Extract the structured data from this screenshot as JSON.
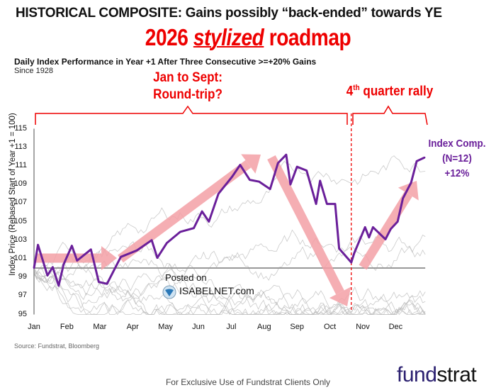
{
  "header": {
    "title": "HISTORICAL COMPOSITE: Gains possibly “back-ended” towards YE",
    "subtitle_pre": "2026 ",
    "subtitle_em": "stylized",
    "subtitle_post": " roadmap"
  },
  "annotations": {
    "left_bracket_line1": "Jan to Sept:",
    "left_bracket_line2": "Round-trip?",
    "right_bracket_pre": "4",
    "right_bracket_sup": "th",
    "right_bracket_post": " quarter rally",
    "index_line1": "Index Comp.",
    "index_line2": "(N=12)",
    "index_line3": "+12%",
    "posted_on": "Posted on",
    "watermark": "ISABELNET.com"
  },
  "colors": {
    "accent_red": "#ee0000",
    "series_purple": "#6a1f9a",
    "arrow_pink": "#f4a0a6",
    "history_gray": "#bdbdbd",
    "logo_navy": "#2b2070"
  },
  "chart_data": {
    "type": "line",
    "title": "Daily Index Performance in Year +1 After Three Consecutive >=+20% Gains",
    "subtitle": "Since 1928",
    "ylabel": "Index Price (Rebased Start of Year +1 = 100)",
    "xlabel": "",
    "x_ticks": [
      "Jan",
      "Feb",
      "Mar",
      "Apr",
      "May",
      "Jun",
      "Jul",
      "Aug",
      "Sep",
      "Oct",
      "Nov",
      "Dec"
    ],
    "y_ticks": [
      95,
      97,
      99,
      101,
      103,
      105,
      107,
      109,
      111,
      113,
      115
    ],
    "ylim": [
      95,
      115
    ],
    "x_unit": "months from start of Jan",
    "baseline": 100,
    "grid": false,
    "quarter_marker_x": 9.65,
    "series": [
      {
        "name": "Index Comp. (N=12)",
        "x": [
          0,
          0.12,
          0.41,
          0.57,
          0.75,
          0.9,
          1.15,
          1.31,
          1.73,
          1.97,
          2.22,
          2.64,
          3.13,
          3.58,
          3.75,
          4.04,
          4.45,
          4.86,
          5.11,
          5.32,
          5.61,
          6.02,
          6.27,
          6.56,
          6.85,
          7.18,
          7.42,
          7.67,
          7.8,
          8.0,
          8.29,
          8.58,
          8.7,
          8.91,
          9.16,
          9.28,
          9.65,
          9.74,
          10.07,
          10.19,
          10.31,
          10.69,
          10.85,
          11.06,
          11.22,
          11.47,
          11.64,
          11.88
        ],
        "y": [
          100,
          102.5,
          99.2,
          100.1,
          98.1,
          100.4,
          102.4,
          100.8,
          102,
          98.5,
          98.3,
          101.2,
          101.9,
          103,
          101.1,
          102.7,
          103.9,
          104.3,
          106.1,
          105,
          108,
          109.8,
          111.1,
          109.5,
          109.3,
          108.5,
          111.3,
          112.2,
          109,
          110.9,
          110.5,
          106.9,
          109.4,
          106.9,
          106.9,
          102.1,
          100.6,
          101.6,
          104.4,
          103.3,
          104.4,
          103.1,
          104.2,
          105,
          107.5,
          109.2,
          111.5,
          111.9
        ]
      }
    ]
  },
  "footer": {
    "source": "Source: Fundstrat, Bloomberg",
    "disclaimer": "For Exclusive Use of Fundstrat Clients Only",
    "logo_pre": "fund",
    "logo_post": "strat"
  }
}
